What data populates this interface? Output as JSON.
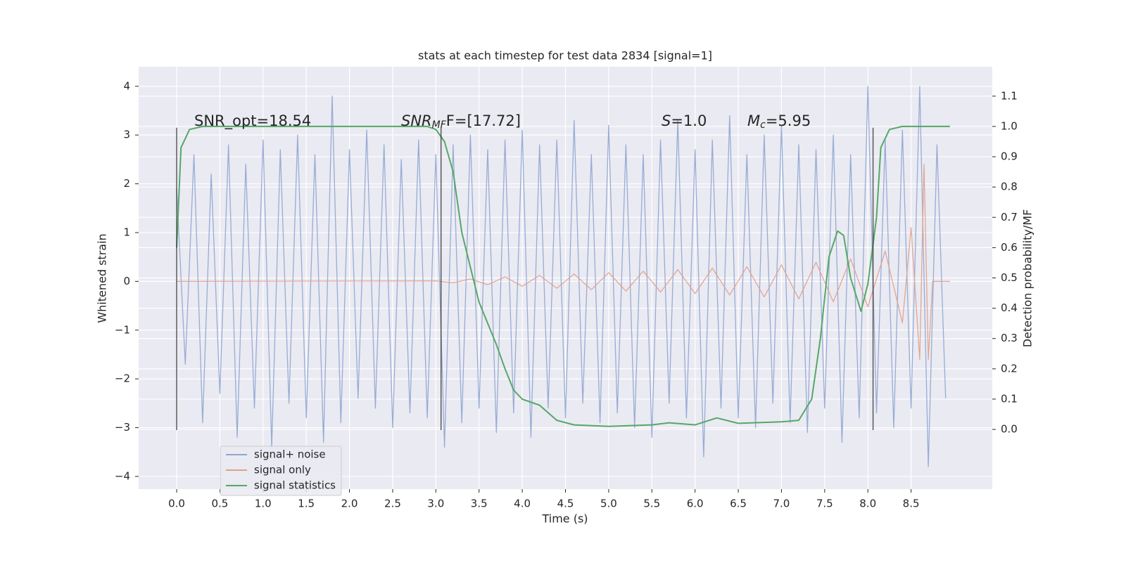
{
  "chart_data": {
    "type": "line",
    "title": "stats at each timestep for test data 2834 [signal=1]",
    "xlabel": "Time (s)",
    "ylabel": "Whitened strain",
    "y2label": "Detection probability/MF",
    "xlim": [
      -0.44,
      9.44
    ],
    "ylim": [
      -4.26,
      4.4
    ],
    "y2lim": [
      -0.197,
      1.197
    ],
    "xticks": [
      {
        "value": 0,
        "label": "0.0"
      },
      0.5,
      {
        "value": 1,
        "label": "1.0"
      },
      1.5,
      {
        "value": 2,
        "label": "2.0"
      },
      2.5,
      {
        "value": 3,
        "label": "3.0"
      },
      3.5,
      {
        "value": 4,
        "label": "4.0"
      },
      4.5,
      {
        "value": 5,
        "label": "5.0"
      },
      5.5,
      {
        "value": 6,
        "label": "6.0"
      },
      6.5,
      {
        "value": 7,
        "label": "7.0"
      },
      7.5,
      {
        "value": 8,
        "label": "8.0"
      },
      8.5
    ],
    "yticks": [
      {
        "value": -4,
        "label": "−4"
      },
      {
        "value": -3,
        "label": "−3"
      },
      {
        "value": -2,
        "label": "−2"
      },
      {
        "value": -1,
        "label": "−1"
      },
      0,
      1,
      2,
      3,
      4
    ],
    "y2ticks": [
      {
        "value": 0,
        "label": "0.0"
      },
      0.1,
      0.2,
      0.3,
      0.4,
      0.5,
      0.6,
      0.7,
      0.8,
      0.9,
      {
        "value": 1,
        "label": "1.0"
      },
      1.1
    ],
    "grid": true,
    "legend": "lower left",
    "vlines": [
      0,
      3.06,
      8.06
    ],
    "vline_range": [
      -3.05,
      3.15
    ],
    "annotations": [
      {
        "text": "SNR_opt=18.54"
      },
      {
        "base": "SNR",
        "sub": "MF",
        "tail": "F=[17.72]"
      },
      {
        "base": "S",
        "tail": "=1.0"
      },
      {
        "base": "M",
        "sub": "c",
        "tail": "=5.95"
      }
    ],
    "series": [
      {
        "name": "signal+ noise",
        "color": "#8fa5d1",
        "x": [
          0,
          0.1,
          0.2,
          0.3,
          0.4,
          0.5,
          0.6,
          0.7,
          0.8,
          0.9,
          1,
          1.1,
          1.2,
          1.3,
          1.4,
          1.5,
          1.6,
          1.7,
          1.8,
          1.9,
          2,
          2.1,
          2.2,
          2.3,
          2.4,
          2.5,
          2.6,
          2.7,
          2.8,
          2.9,
          3,
          3.1,
          3.2,
          3.3,
          3.4,
          3.5,
          3.6,
          3.7,
          3.8,
          3.9,
          4,
          4.1,
          4.2,
          4.3,
          4.4,
          4.5,
          4.6,
          4.7,
          4.8,
          4.9,
          5,
          5.1,
          5.2,
          5.3,
          5.4,
          5.5,
          5.6,
          5.7,
          5.8,
          5.9,
          6,
          6.1,
          6.2,
          6.3,
          6.4,
          6.5,
          6.6,
          6.7,
          6.8,
          6.9,
          7,
          7.1,
          7.2,
          7.3,
          7.4,
          7.5,
          7.6,
          7.7,
          7.8,
          7.9,
          8,
          8.1,
          8.2,
          8.3,
          8.4,
          8.5,
          8.6,
          8.7,
          8.8,
          8.9
        ],
        "values": [
          1.9,
          -1.7,
          2.6,
          -2.9,
          2.2,
          -2.3,
          2.8,
          -3.2,
          2.4,
          -2.6,
          2.9,
          -3.4,
          2.7,
          -2.5,
          3.0,
          -2.8,
          2.6,
          -3.3,
          3.8,
          -2.9,
          2.7,
          -2.4,
          3.1,
          -2.6,
          2.8,
          -3.0,
          2.5,
          -2.7,
          2.9,
          -2.8,
          2.6,
          -3.4,
          2.8,
          -2.9,
          3.0,
          -2.6,
          2.7,
          -3.1,
          2.9,
          -2.7,
          3.1,
          -3.2,
          2.8,
          -2.6,
          2.9,
          -2.8,
          3.3,
          -2.5,
          2.6,
          -2.9,
          3.2,
          -2.7,
          2.8,
          -3.0,
          2.6,
          -3.2,
          2.9,
          -2.5,
          3.3,
          -2.8,
          2.7,
          -3.6,
          2.9,
          -2.6,
          3.4,
          -2.8,
          2.6,
          -3.0,
          3.0,
          -2.5,
          3.2,
          -2.9,
          2.8,
          -3.1,
          2.7,
          -2.6,
          3.0,
          -3.3,
          2.6,
          -2.8,
          4.0,
          -2.7,
          2.9,
          -3.0,
          3.1,
          -2.6,
          4.0,
          -3.8,
          2.8,
          -2.4
        ]
      },
      {
        "name": "signal only",
        "color": "#e0a08a",
        "x": [
          0,
          3.0,
          3.2,
          3.4,
          3.6,
          3.8,
          4.0,
          4.2,
          4.4,
          4.6,
          4.8,
          5.0,
          5.2,
          5.4,
          5.6,
          5.8,
          6.0,
          6.2,
          6.4,
          6.6,
          6.8,
          7.0,
          7.2,
          7.4,
          7.6,
          7.8,
          8.0,
          8.2,
          8.4,
          8.5,
          8.6,
          8.65,
          8.7,
          8.75,
          8.95
        ],
        "values": [
          0,
          0.01,
          -0.03,
          0.05,
          -0.07,
          0.09,
          -0.1,
          0.12,
          -0.14,
          0.15,
          -0.17,
          0.18,
          -0.2,
          0.21,
          -0.22,
          0.24,
          -0.25,
          0.27,
          -0.28,
          0.3,
          -0.32,
          0.34,
          -0.36,
          0.39,
          -0.42,
          0.46,
          -0.52,
          0.62,
          -0.85,
          1.1,
          -1.6,
          2.4,
          -1.6,
          0,
          0
        ]
      },
      {
        "name": "signal statistics",
        "color": "#55a868",
        "axis": "y2",
        "x": [
          0,
          0.05,
          0.15,
          0.3,
          2.9,
          3.0,
          3.1,
          3.2,
          3.3,
          3.5,
          3.7,
          3.8,
          3.9,
          4.0,
          4.2,
          4.4,
          4.6,
          5.0,
          5.5,
          5.7,
          6.0,
          6.25,
          6.5,
          7.0,
          7.2,
          7.35,
          7.45,
          7.55,
          7.65,
          7.72,
          7.8,
          7.92,
          8.0,
          8.1,
          8.15,
          8.25,
          8.4,
          8.95
        ],
        "values": [
          0.6,
          0.93,
          0.99,
          1.0,
          1.0,
          0.99,
          0.95,
          0.85,
          0.65,
          0.42,
          0.28,
          0.2,
          0.13,
          0.1,
          0.08,
          0.03,
          0.015,
          0.01,
          0.015,
          0.022,
          0.015,
          0.038,
          0.02,
          0.025,
          0.03,
          0.1,
          0.3,
          0.57,
          0.655,
          0.64,
          0.5,
          0.39,
          0.48,
          0.7,
          0.93,
          0.99,
          1.0,
          1.0
        ]
      }
    ]
  }
}
